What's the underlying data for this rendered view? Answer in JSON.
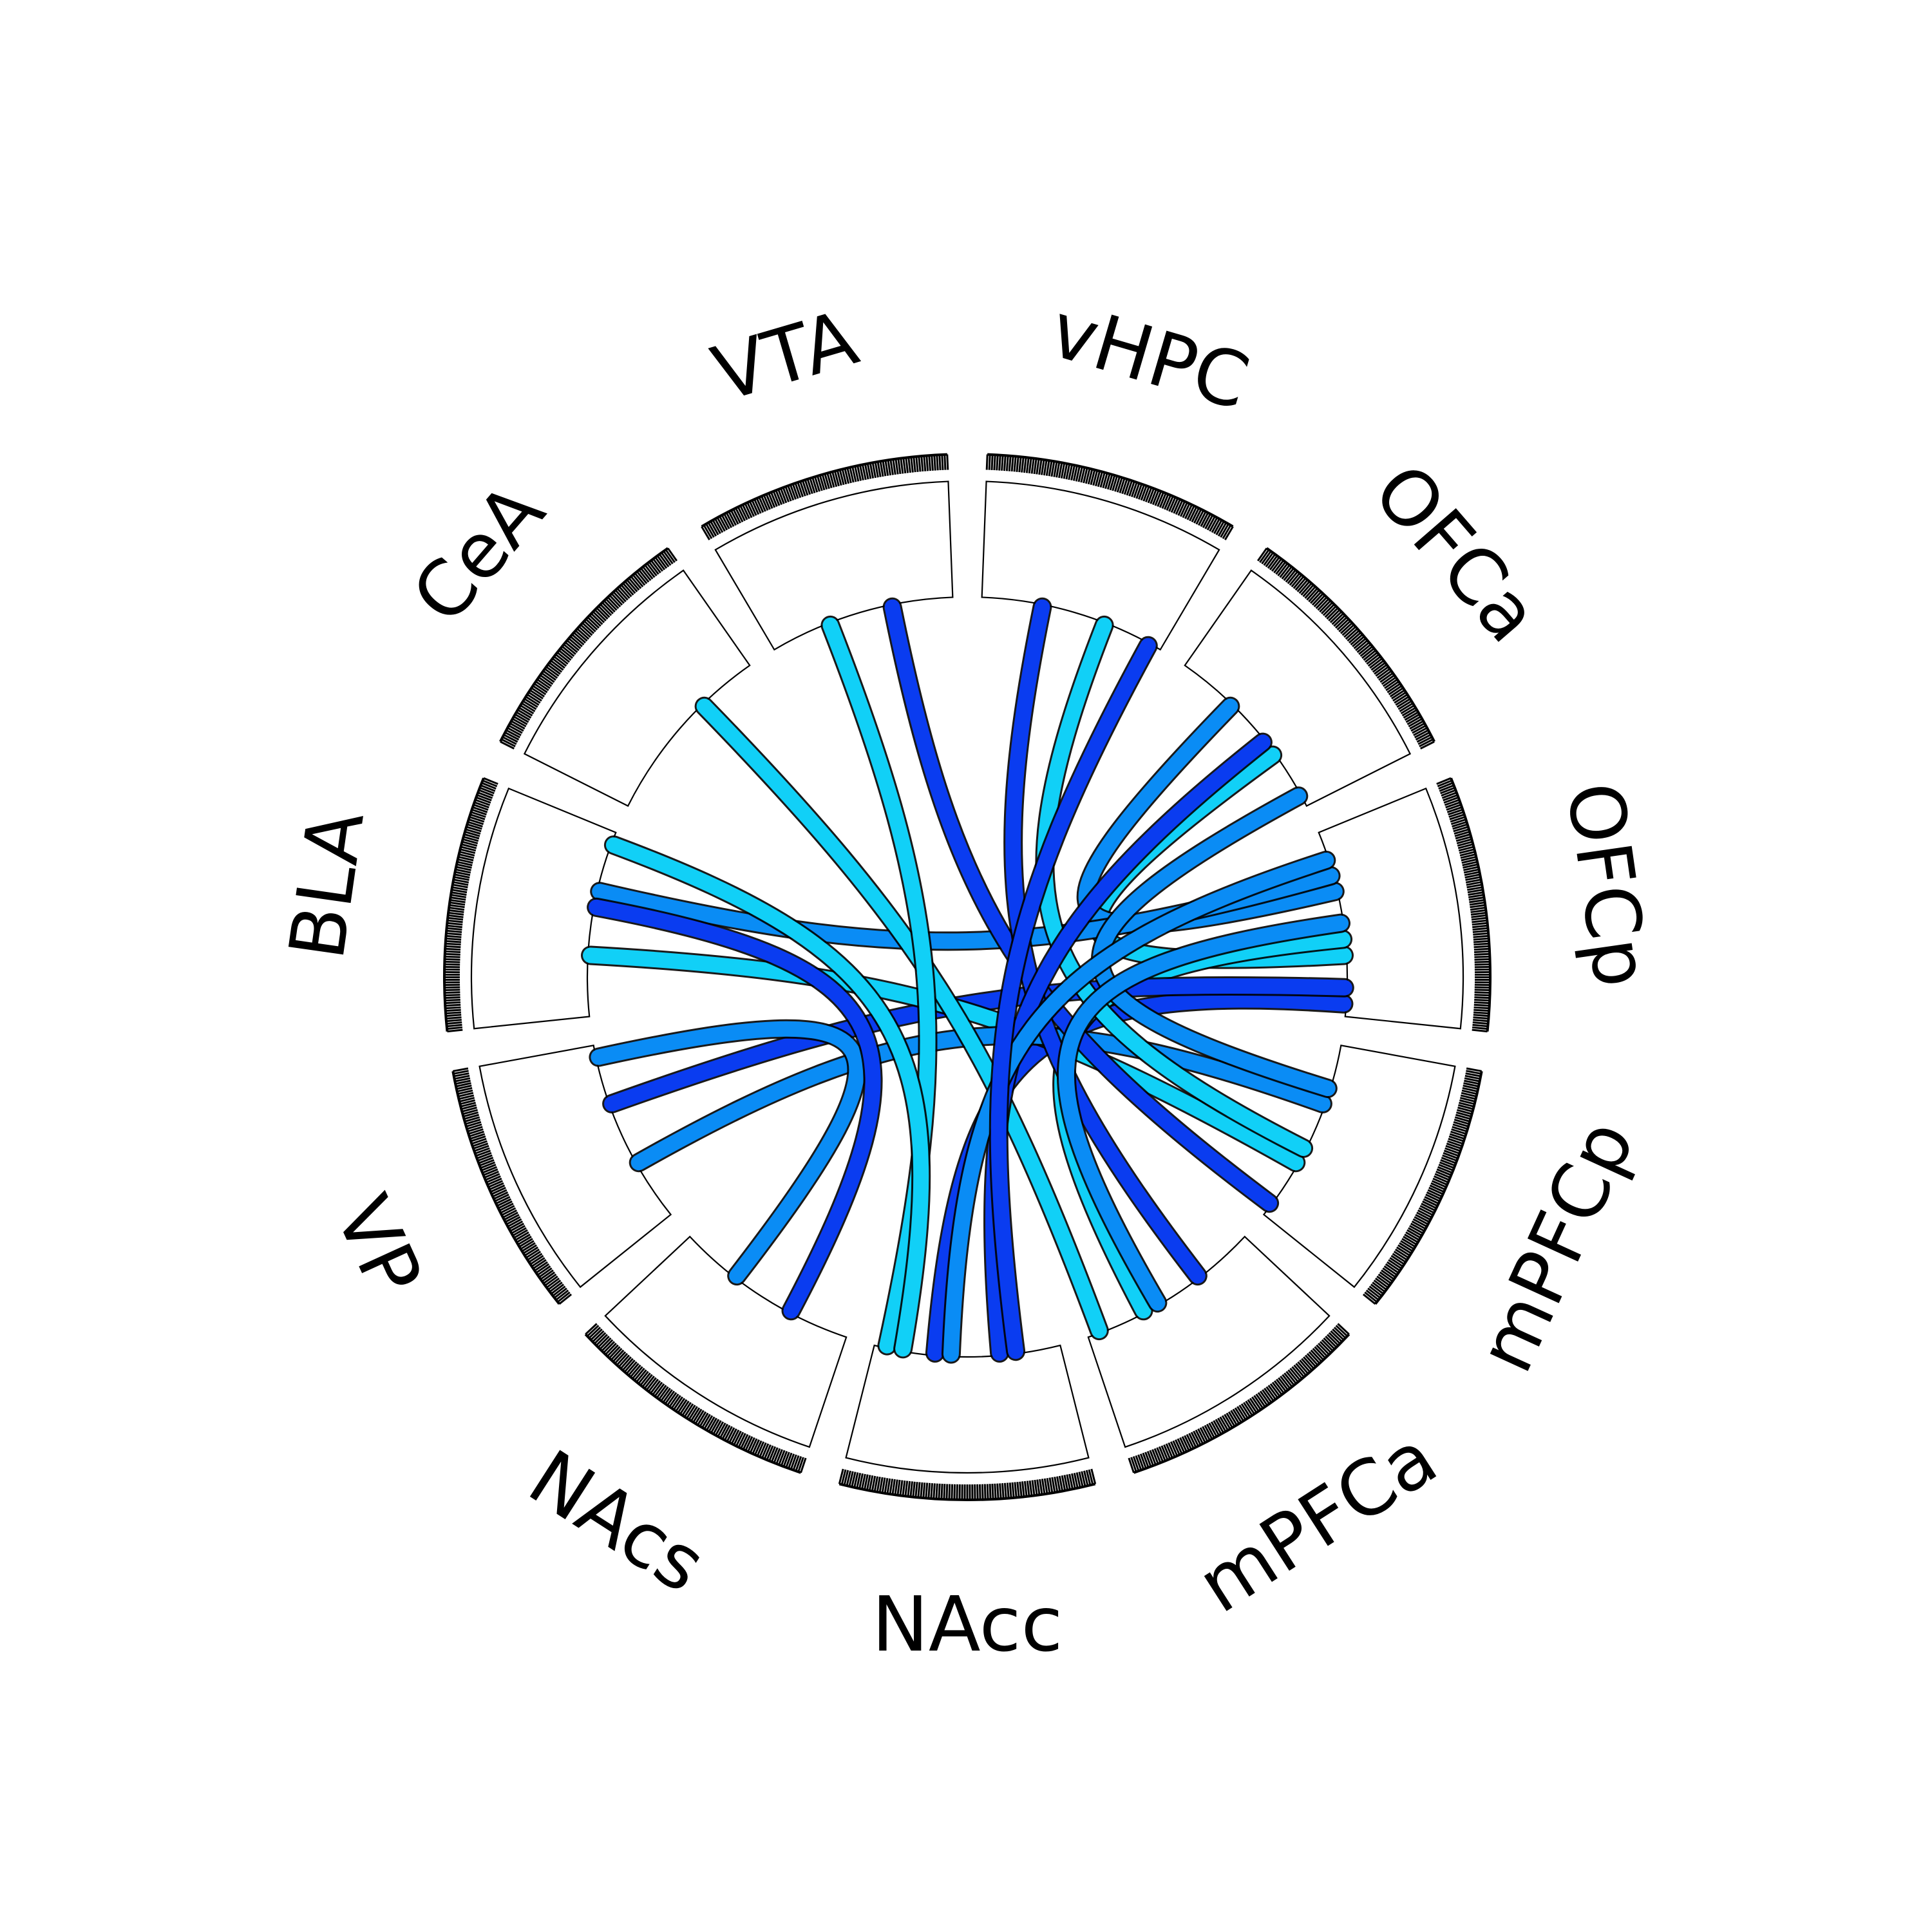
{
  "regions": [
    "NAcc",
    "NAcs",
    "VP",
    "BLA",
    "CeA",
    "VTA",
    "vHPC",
    "OFCa",
    "OFCp",
    "mPFCp",
    "mPFCa"
  ],
  "colors": {
    "chord_dark": "#0a3cf0",
    "chord_mid": "#0a8cf5",
    "chord_light": "#11d0f7",
    "chord_edge": "#000000",
    "ring_stroke": "#000000",
    "tick": "#000000"
  },
  "connections": [
    {
      "from": "OFCp",
      "to": "OFCa"
    },
    {
      "from": "OFCp",
      "to": "OFCa"
    },
    {
      "from": "OFCp",
      "to": "NAcc"
    },
    {
      "from": "OFCp",
      "to": "mPFCa"
    },
    {
      "from": "OFCp",
      "to": "BLA"
    },
    {
      "from": "OFCp",
      "to": "VP"
    },
    {
      "from": "mPFCp",
      "to": "BLA"
    },
    {
      "from": "mPFCp",
      "to": "VP"
    },
    {
      "from": "mPFCp",
      "to": "VTA"
    },
    {
      "from": "mPFCp",
      "to": "vHPC"
    },
    {
      "from": "mPFCp",
      "to": "OFCa"
    },
    {
      "from": "mPFCa",
      "to": "vHPC"
    },
    {
      "from": "mPFCa",
      "to": "CeA"
    },
    {
      "from": "mPFCa",
      "to": "OFCp"
    },
    {
      "from": "NAcc",
      "to": "OFCa"
    },
    {
      "from": "NAcc",
      "to": "VTA"
    },
    {
      "from": "NAcc",
      "to": "OFCp"
    },
    {
      "from": "NAcc",
      "to": "vHPC"
    },
    {
      "from": "NAcc",
      "to": "BLA"
    },
    {
      "from": "NAcs",
      "to": "VP"
    },
    {
      "from": "NAcs",
      "to": "BLA"
    }
  ]
}
